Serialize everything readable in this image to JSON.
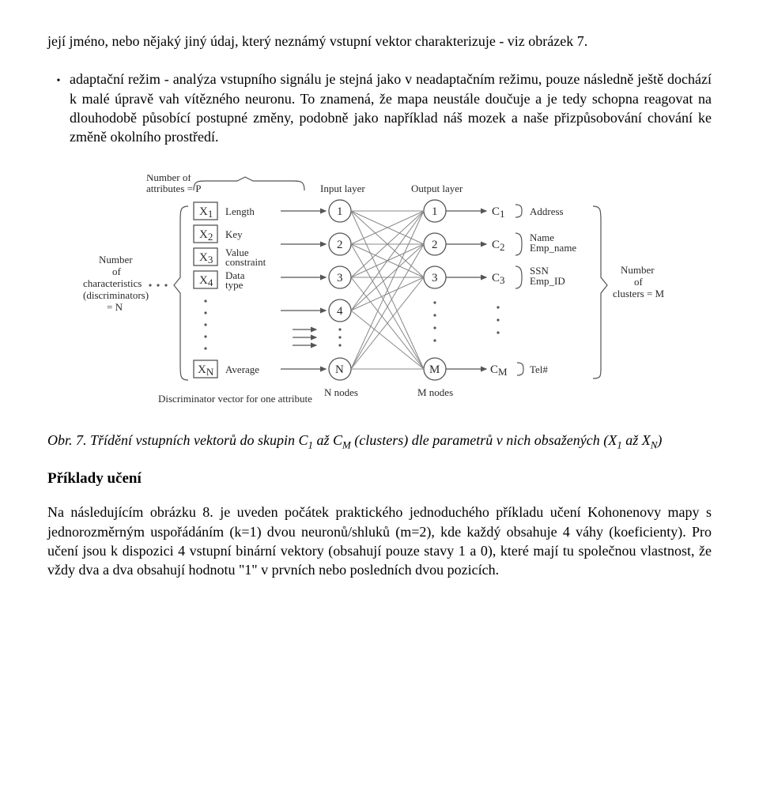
{
  "para1": "její jméno, nebo nějaký jiný údaj, který neznámý vstupní vektor charakterizuje - viz obrázek 7.",
  "bullet": "adaptační režim - analýza vstupního signálu je stejná jako v neadaptačním režimu, pouze následně ještě dochází k malé úpravě vah vítězného neuronu. To znamená, že mapa neustále doučuje a je tedy schopna reagovat na dlouhodobě působící postupné změny, podobně jako například náš mozek a naše přizpůsobování chování ke změně okolního prostředí.",
  "fig": {
    "attr_top": "Number of\nattributes = P",
    "left_label": "Number\nof\ncharacteristics\n(discriminators)\n= N",
    "input_title": "Input layer",
    "output_title": "Output layer",
    "bottom_left": "Discriminator vector for one attribute",
    "n_nodes": "N nodes",
    "m_nodes": "M nodes",
    "right_label": "Number\nof\nclusters = M",
    "x_labels": [
      "X",
      "X",
      "X",
      "X",
      "X"
    ],
    "x_subs": [
      "1",
      "2",
      "3",
      "4",
      "N"
    ],
    "x_attrs": [
      "Length",
      "Key",
      "Value\nconstraint",
      "Data\ntype",
      "Average"
    ],
    "in_nodes": [
      "1",
      "2",
      "3",
      "4",
      "N"
    ],
    "out_nodes": [
      "1",
      "2",
      "3",
      "M"
    ],
    "c_labels": [
      "C",
      "C",
      "C",
      "C"
    ],
    "c_subs": [
      "1",
      "2",
      "3",
      "M"
    ],
    "c_attrs": [
      "Address",
      "Name\nEmp_name",
      "SSN\nEmp_ID",
      "Tel#"
    ],
    "colors": {
      "stroke": "#555555",
      "conn": "#888888",
      "text": "#2a2a2a",
      "bg": "#ffffff"
    }
  },
  "caption_lead": "Obr. 7. Třídění vstupních vektorů do skupin C",
  "caption_mid1": " až C",
  "caption_mid2": " (clusters) dle parametrů v nich obsažených (X",
  "caption_mid3": " až X",
  "caption_end": ")",
  "sub1": "1",
  "subM": "M",
  "subN": "N",
  "section": "Příklady učení",
  "para2": "Na následujícím obrázku 8. je uveden počátek praktického jednoduchého příkladu učení Kohonenovy mapy s jednorozměrným uspořádáním (k=1) dvou neuronů/shluků (m=2), kde každý obsahuje 4 váhy (koeficienty). Pro učení jsou k dispozici 4 vstupní binární vektory (obsahují pouze stavy 1 a 0), které mají tu společnou vlastnost, že vždy dva a dva obsahují hodnotu \"1\" v prvních nebo posledních dvou pozicích."
}
